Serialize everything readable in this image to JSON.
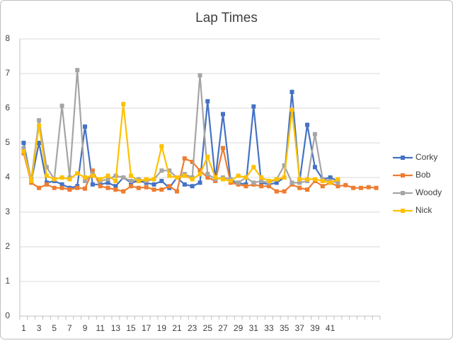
{
  "chart_data": {
    "type": "line",
    "title": "Lap Times",
    "categories": [
      1,
      2,
      3,
      4,
      5,
      6,
      7,
      8,
      9,
      10,
      11,
      12,
      13,
      14,
      15,
      16,
      17,
      18,
      19,
      20,
      21,
      22,
      23,
      24,
      25,
      26,
      27,
      28,
      29,
      30,
      31,
      32,
      33,
      34,
      35,
      36,
      37,
      38,
      39,
      40,
      41,
      null,
      null,
      null,
      null,
      null,
      null
    ],
    "series": [
      {
        "name": "Corky",
        "color": "#4472c4",
        "values": [
          5.0,
          3.9,
          5.0,
          3.85,
          3.9,
          3.8,
          3.7,
          3.75,
          5.47,
          3.8,
          3.8,
          3.85,
          3.75,
          4.0,
          3.85,
          3.9,
          3.85,
          3.8,
          3.9,
          3.7,
          4.0,
          3.8,
          3.75,
          3.85,
          6.2,
          3.95,
          5.83,
          3.9,
          3.85,
          3.8,
          6.05,
          3.85,
          3.8,
          3.85,
          4.0,
          6.47,
          3.9,
          5.52,
          4.3,
          3.95,
          4.0,
          3.9,
          null,
          null,
          null,
          null,
          null
        ]
      },
      {
        "name": "Bob",
        "color": "#ed7d31",
        "values": [
          4.7,
          3.85,
          3.7,
          3.8,
          3.7,
          3.7,
          3.65,
          3.7,
          3.68,
          4.2,
          3.75,
          3.7,
          3.65,
          3.6,
          3.75,
          3.7,
          3.72,
          3.65,
          3.65,
          3.75,
          3.6,
          4.55,
          4.45,
          4.2,
          4.0,
          3.9,
          4.85,
          3.85,
          3.8,
          3.75,
          3.8,
          3.75,
          3.75,
          3.6,
          3.6,
          3.8,
          3.7,
          3.65,
          3.9,
          3.75,
          3.85,
          3.75,
          3.78,
          3.7,
          3.7,
          3.72,
          3.7
        ]
      },
      {
        "name": "Woody",
        "color": "#a5a5a5",
        "values": [
          4.85,
          3.95,
          5.65,
          4.3,
          3.95,
          6.07,
          4.0,
          7.1,
          3.9,
          4.1,
          3.9,
          3.95,
          4.05,
          4.0,
          3.9,
          3.95,
          3.9,
          3.95,
          4.2,
          4.2,
          4.0,
          4.1,
          4.0,
          6.95,
          4.1,
          3.95,
          4.0,
          3.95,
          3.85,
          4.0,
          3.85,
          3.9,
          3.85,
          3.95,
          4.35,
          3.85,
          3.85,
          3.9,
          5.25,
          3.95,
          3.9,
          3.85,
          null,
          null,
          null,
          null,
          null
        ]
      },
      {
        "name": "Nick",
        "color": "#ffc000",
        "values": [
          4.75,
          3.9,
          5.5,
          4.05,
          3.95,
          4.0,
          3.95,
          4.12,
          4.0,
          4.05,
          3.95,
          4.05,
          3.9,
          6.12,
          4.05,
          3.9,
          3.95,
          3.95,
          4.9,
          4.05,
          4.0,
          4.05,
          3.95,
          4.1,
          4.6,
          4.0,
          3.95,
          3.9,
          4.05,
          4.0,
          4.3,
          4.0,
          3.9,
          3.95,
          4.0,
          5.95,
          3.95,
          3.95,
          3.95,
          3.9,
          3.85,
          3.95,
          null,
          null,
          null,
          null,
          null
        ]
      }
    ],
    "ylim": [
      0,
      8
    ],
    "yticks": [
      0,
      1,
      2,
      3,
      4,
      5,
      6,
      7,
      8
    ],
    "grid": true,
    "legend": "right"
  }
}
